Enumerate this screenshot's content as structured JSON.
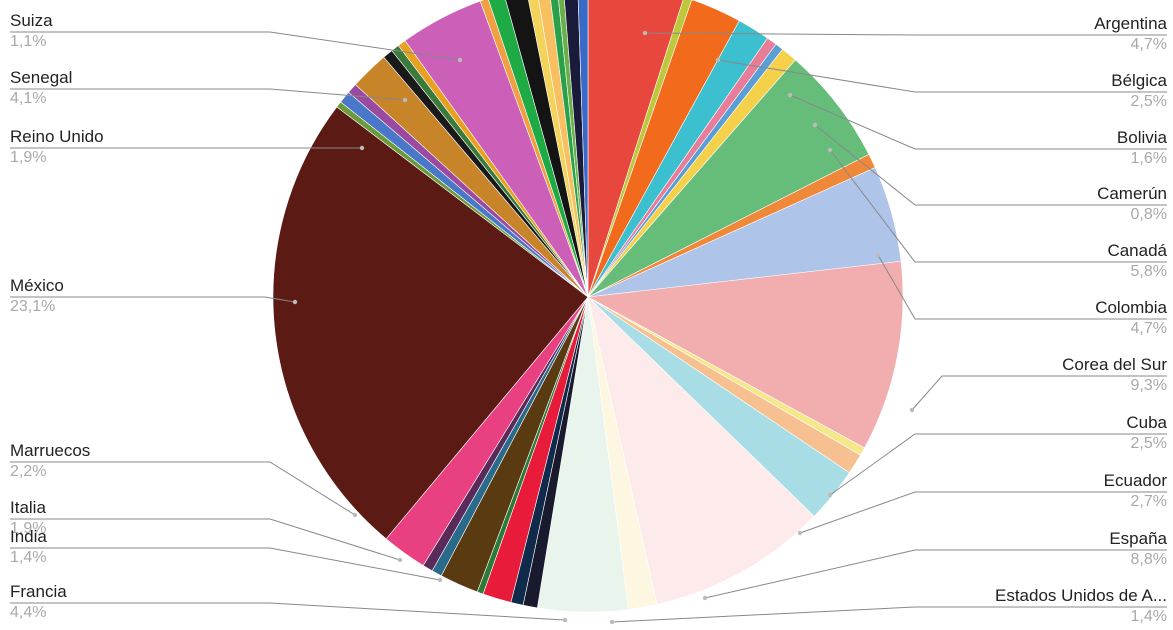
{
  "chart_data": {
    "type": "pie",
    "labeled_slices": [
      {
        "name": "Suiza",
        "value_label": "1,1%",
        "value": 1.1,
        "side": "left"
      },
      {
        "name": "Senegal",
        "value_label": "4,1%",
        "value": 4.1,
        "side": "left"
      },
      {
        "name": "Reino Unido",
        "value_label": "1,9%",
        "value": 1.9,
        "side": "left"
      },
      {
        "name": "México",
        "value_label": "23,1%",
        "value": 23.1,
        "side": "left"
      },
      {
        "name": "Marruecos",
        "value_label": "2,2%",
        "value": 2.2,
        "side": "left"
      },
      {
        "name": "Italia",
        "value_label": "1,9%",
        "value": 1.9,
        "side": "left"
      },
      {
        "name": "India",
        "value_label": "1,4%",
        "value": 1.4,
        "side": "left"
      },
      {
        "name": "Francia",
        "value_label": "4,4%",
        "value": 4.4,
        "side": "left"
      },
      {
        "name": "Argentina",
        "value_label": "4,7%",
        "value": 4.7,
        "side": "right"
      },
      {
        "name": "Bélgica",
        "value_label": "2,5%",
        "value": 2.5,
        "side": "right"
      },
      {
        "name": "Bolivia",
        "value_label": "1,6%",
        "value": 1.6,
        "side": "right"
      },
      {
        "name": "Camerún",
        "value_label": "0,8%",
        "value": 0.8,
        "side": "right"
      },
      {
        "name": "Canadá",
        "value_label": "5,8%",
        "value": 5.8,
        "side": "right"
      },
      {
        "name": "Colombia",
        "value_label": "4,7%",
        "value": 4.7,
        "side": "right"
      },
      {
        "name": "Corea del Sur",
        "value_label": "9,3%",
        "value": 9.3,
        "side": "right"
      },
      {
        "name": "Cuba",
        "value_label": "2,5%",
        "value": 2.5,
        "side": "right"
      },
      {
        "name": "Ecuador",
        "value_label": "2,7%",
        "value": 2.7,
        "side": "right"
      },
      {
        "name": "España",
        "value_label": "8,8%",
        "value": 8.8,
        "side": "right"
      },
      {
        "name": "Estados Unidos de A...",
        "value_label": "1,4%",
        "value": 1.4,
        "side": "right"
      }
    ],
    "slices_clockwise_from_top": [
      {
        "value": 4.7,
        "color": "#e8473e"
      },
      {
        "value": 0.4,
        "color": "#bdc83a"
      },
      {
        "value": 2.5,
        "color": "#f26b1d"
      },
      {
        "value": 1.6,
        "color": "#3cbfcf"
      },
      {
        "value": 0.5,
        "color": "#e87d9a"
      },
      {
        "value": 0.4,
        "color": "#5a9ed6"
      },
      {
        "value": 0.8,
        "color": "#f5d04a"
      },
      {
        "value": 5.8,
        "color": "#66bd7a"
      },
      {
        "value": 0.7,
        "color": "#f0883a"
      },
      {
        "value": 4.7,
        "color": "#aec4e8"
      },
      {
        "value": 9.3,
        "color": "#f2aeae"
      },
      {
        "value": 0.4,
        "color": "#f5e88a"
      },
      {
        "value": 1.0,
        "color": "#f7c090"
      },
      {
        "value": 2.7,
        "color": "#a8dde6"
      },
      {
        "value": 8.8,
        "color": "#fdeaea"
      },
      {
        "value": 1.4,
        "color": "#fdf6e0"
      },
      {
        "value": 4.4,
        "color": "#e8f4ec"
      },
      {
        "value": 0.7,
        "color": "#1a1a2e"
      },
      {
        "value": 0.6,
        "color": "#0f2a4a"
      },
      {
        "value": 1.4,
        "color": "#e81c3a"
      },
      {
        "value": 0.3,
        "color": "#2a7a3a"
      },
      {
        "value": 1.9,
        "color": "#5a3a10"
      },
      {
        "value": 0.5,
        "color": "#2a6a8a"
      },
      {
        "value": 0.5,
        "color": "#5a2a5a"
      },
      {
        "value": 2.2,
        "color": "#e84080"
      },
      {
        "value": 23.1,
        "color": "#5c1a14"
      },
      {
        "value": 0.3,
        "color": "#6a9a3a"
      },
      {
        "value": 0.6,
        "color": "#4a78c8"
      },
      {
        "value": 0.5,
        "color": "#9a4aa0"
      },
      {
        "value": 1.9,
        "color": "#c88428"
      },
      {
        "value": 0.5,
        "color": "#1a1a1a"
      },
      {
        "value": 0.4,
        "color": "#3a7a3a"
      },
      {
        "value": 0.4,
        "color": "#e8a020"
      },
      {
        "value": 4.1,
        "color": "#cc5fb8"
      },
      {
        "value": 0.4,
        "color": "#f0a040"
      },
      {
        "value": 0.8,
        "color": "#1eaa44"
      },
      {
        "value": 1.1,
        "color": "#141414"
      },
      {
        "value": 0.5,
        "color": "#f3d35a"
      },
      {
        "value": 0.6,
        "color": "#f8c060"
      },
      {
        "value": 0.4,
        "color": "#2aa04a"
      },
      {
        "value": 0.3,
        "color": "#6ab04a"
      },
      {
        "value": 0.7,
        "color": "#1a1a3a"
      },
      {
        "value": 0.5,
        "color": "#3a6ac8"
      }
    ]
  }
}
